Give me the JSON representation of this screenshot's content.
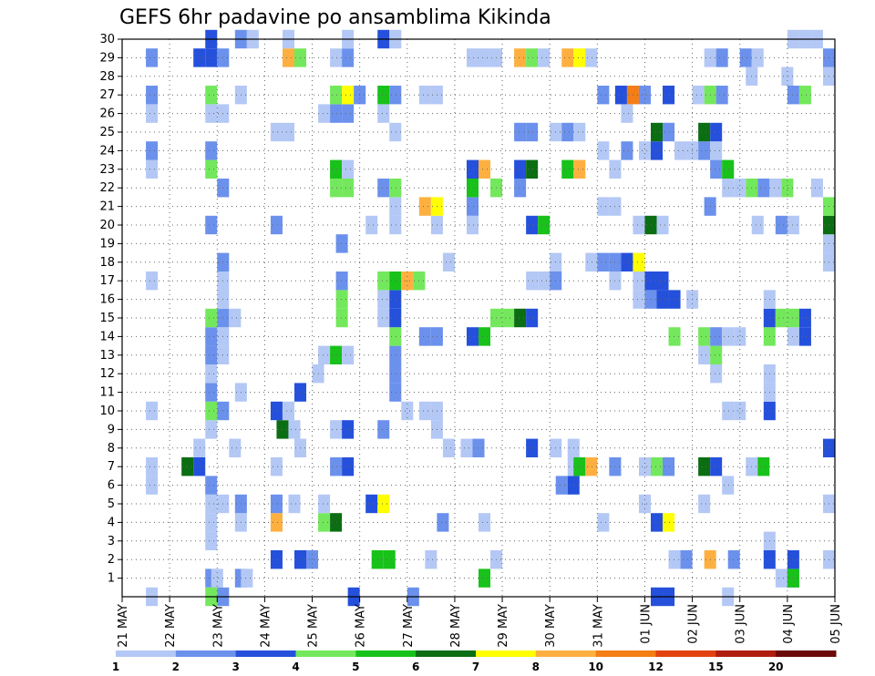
{
  "chart_data": {
    "type": "heatmap",
    "title": "GEFS 6hr padavine po ansamblima Kikinda",
    "x_tick_labels": [
      "21 MAY",
      "22 MAY",
      "23 MAY",
      "24 MAY",
      "25 MAY",
      "26 MAY",
      "27 MAY",
      "28 MAY",
      "29 MAY",
      "30 MAY",
      "31 MAY",
      "01 JUN",
      "02 JUN",
      "03 JUN",
      "04 JUN",
      "05 JUN"
    ],
    "x_range_days": [
      0,
      15
    ],
    "y_tick_labels": [
      "1",
      "2",
      "3",
      "4",
      "5",
      "6",
      "7",
      "8",
      "9",
      "10",
      "11",
      "12",
      "13",
      "14",
      "15",
      "16",
      "17",
      "18",
      "19",
      "20",
      "21",
      "22",
      "23",
      "24",
      "25",
      "26",
      "27",
      "28",
      "29",
      "30"
    ],
    "y_range": [
      0,
      30
    ],
    "grid": true,
    "legend_position": "bottom",
    "colorbar": {
      "labels": [
        "1",
        "2",
        "3",
        "4",
        "5",
        "6",
        "7",
        "8",
        "10",
        "12",
        "15",
        "20"
      ],
      "colors": [
        "#b4c8f5",
        "#6b91ec",
        "#2550db",
        "#74e85c",
        "#18c21a",
        "#0b6e12",
        "#ffff00",
        "#fdb040",
        "#f57d15",
        "#e2420f",
        "#b01e10",
        "#6a0a0a"
      ]
    },
    "cells_note_units": "each cell: [member 1-30, time step in days since 21 MAY 00Z, 6hr precipitation in mm]",
    "cells": [
      [
        1,
        1.875,
        2.5
      ],
      [
        1,
        2.0,
        1.5
      ],
      [
        1,
        2.5,
        2.5
      ],
      [
        1,
        2.625,
        1.5
      ],
      [
        1,
        7.625,
        5.5
      ],
      [
        1,
        13.875,
        1.5
      ],
      [
        1,
        14.125,
        2.5
      ],
      [
        1,
        14.125,
        5.5
      ],
      [
        2,
        3.25,
        3
      ],
      [
        2,
        3.75,
        3
      ],
      [
        2,
        4.0,
        2
      ],
      [
        2,
        5.375,
        5
      ],
      [
        2,
        5.625,
        5.5
      ],
      [
        2,
        6.5,
        1.5
      ],
      [
        2,
        7.875,
        1.5
      ],
      [
        2,
        11.625,
        1.5
      ],
      [
        2,
        11.875,
        2.5
      ],
      [
        2,
        12.375,
        9
      ],
      [
        2,
        12.875,
        2.5
      ],
      [
        2,
        13.625,
        3
      ],
      [
        2,
        14.125,
        3
      ],
      [
        2,
        14.875,
        1.5
      ],
      [
        3,
        1.875,
        1.5
      ],
      [
        3,
        13.625,
        1.5
      ],
      [
        4,
        1.875,
        1.5
      ],
      [
        4,
        2.5,
        1.5
      ],
      [
        4,
        3.25,
        8
      ],
      [
        4,
        4.25,
        4.5
      ],
      [
        4,
        4.5,
        6.5
      ],
      [
        4,
        6.75,
        2.5
      ],
      [
        4,
        7.625,
        1.5
      ],
      [
        4,
        10.125,
        1.5
      ],
      [
        4,
        11.25,
        3
      ],
      [
        4,
        11.5,
        7.5
      ],
      [
        5,
        1.875,
        1.5
      ],
      [
        5,
        2.125,
        1.5
      ],
      [
        5,
        2.5,
        2.5
      ],
      [
        5,
        3.25,
        2.5
      ],
      [
        5,
        3.625,
        1.5
      ],
      [
        5,
        4.25,
        1.5
      ],
      [
        5,
        5.25,
        3
      ],
      [
        5,
        5.5,
        7.5
      ],
      [
        5,
        11.0,
        1.5
      ],
      [
        5,
        12.25,
        1.5
      ],
      [
        5,
        14.875,
        1.5
      ],
      [
        6,
        0.625,
        1.5
      ],
      [
        6,
        1.875,
        2.5
      ],
      [
        6,
        9.25,
        2.5
      ],
      [
        6,
        9.5,
        3
      ],
      [
        6,
        12.75,
        1.5
      ],
      [
        7,
        0.625,
        1.5
      ],
      [
        7,
        1.375,
        6.5
      ],
      [
        7,
        1.625,
        3
      ],
      [
        7,
        3.25,
        1.5
      ],
      [
        7,
        4.5,
        2.5
      ],
      [
        7,
        4.75,
        3
      ],
      [
        7,
        9.5,
        1.5
      ],
      [
        7,
        9.625,
        5.5
      ],
      [
        7,
        9.875,
        9.5
      ],
      [
        7,
        10.375,
        2.5
      ],
      [
        7,
        11.0,
        1.5
      ],
      [
        7,
        11.25,
        4.5
      ],
      [
        7,
        11.5,
        2.5
      ],
      [
        7,
        12.25,
        6.5
      ],
      [
        7,
        12.5,
        3
      ],
      [
        7,
        13.25,
        1.5
      ],
      [
        7,
        13.5,
        5.5
      ],
      [
        8,
        1.625,
        1.5
      ],
      [
        8,
        2.375,
        1.5
      ],
      [
        8,
        3.75,
        1.5
      ],
      [
        8,
        6.875,
        1.5
      ],
      [
        8,
        7.25,
        1.5
      ],
      [
        8,
        7.5,
        2.5
      ],
      [
        8,
        8.625,
        3
      ],
      [
        8,
        9.125,
        1.5
      ],
      [
        8,
        9.5,
        1.5
      ],
      [
        8,
        14.875,
        3
      ],
      [
        9,
        1.875,
        1.5
      ],
      [
        9,
        3.375,
        6.5
      ],
      [
        9,
        3.625,
        1.5
      ],
      [
        9,
        4.5,
        1.5
      ],
      [
        9,
        4.75,
        3
      ],
      [
        9,
        5.5,
        2.5
      ],
      [
        9,
        6.625,
        1.5
      ],
      [
        10,
        0.625,
        1.5
      ],
      [
        10,
        1.875,
        4.5
      ],
      [
        10,
        2.125,
        2.5
      ],
      [
        10,
        3.25,
        3
      ],
      [
        10,
        3.5,
        1.5
      ],
      [
        10,
        6.0,
        1.5
      ],
      [
        10,
        6.375,
        1.5
      ],
      [
        10,
        6.625,
        1.5
      ],
      [
        10,
        12.75,
        1.5
      ],
      [
        10,
        13.0,
        1.5
      ],
      [
        10,
        13.625,
        3
      ],
      [
        11,
        1.875,
        2.5
      ],
      [
        11,
        2.5,
        1.5
      ],
      [
        11,
        3.75,
        3
      ],
      [
        11,
        5.75,
        2.5
      ],
      [
        11,
        13.625,
        1.5
      ],
      [
        12,
        1.875,
        1.5
      ],
      [
        12,
        4.125,
        1.5
      ],
      [
        12,
        5.75,
        2.5
      ],
      [
        12,
        12.5,
        1.5
      ],
      [
        12,
        13.625,
        1.5
      ],
      [
        13,
        1.875,
        2.5
      ],
      [
        13,
        2.125,
        1.5
      ],
      [
        13,
        4.25,
        1.5
      ],
      [
        13,
        4.5,
        5.5
      ],
      [
        13,
        4.75,
        1.5
      ],
      [
        13,
        5.75,
        2.5
      ],
      [
        13,
        12.25,
        1.5
      ],
      [
        13,
        12.5,
        4.5
      ],
      [
        14,
        1.875,
        2.5
      ],
      [
        14,
        2.125,
        1.5
      ],
      [
        14,
        5.75,
        4.5
      ],
      [
        14,
        6.375,
        2.5
      ],
      [
        14,
        6.625,
        2.5
      ],
      [
        14,
        7.375,
        3
      ],
      [
        14,
        7.625,
        5.5
      ],
      [
        14,
        11.625,
        4.5
      ],
      [
        14,
        12.25,
        4.5
      ],
      [
        14,
        12.5,
        2.5
      ],
      [
        14,
        12.75,
        1.5
      ],
      [
        14,
        13.0,
        1.5
      ],
      [
        14,
        13.625,
        4.5
      ],
      [
        14,
        14.125,
        1.5
      ],
      [
        14,
        14.375,
        3
      ],
      [
        15,
        1.875,
        4.5
      ],
      [
        15,
        2.125,
        2.5
      ],
      [
        15,
        2.375,
        1.5
      ],
      [
        15,
        4.625,
        4.5
      ],
      [
        15,
        5.5,
        1.5
      ],
      [
        15,
        5.75,
        3
      ],
      [
        15,
        7.875,
        4.5
      ],
      [
        15,
        8.125,
        4.5
      ],
      [
        15,
        8.375,
        6.5
      ],
      [
        15,
        8.625,
        3
      ],
      [
        15,
        13.625,
        3
      ],
      [
        15,
        13.875,
        4.5
      ],
      [
        15,
        14.125,
        4.5
      ],
      [
        15,
        14.375,
        3
      ],
      [
        16,
        2.125,
        1.5
      ],
      [
        16,
        4.625,
        4.5
      ],
      [
        16,
        5.5,
        1.5
      ],
      [
        16,
        5.75,
        3
      ],
      [
        16,
        10.875,
        1.5
      ],
      [
        16,
        11.125,
        2.5
      ],
      [
        16,
        11.375,
        3
      ],
      [
        16,
        11.625,
        3
      ],
      [
        16,
        12.0,
        1.5
      ],
      [
        16,
        13.625,
        1.5
      ],
      [
        17,
        0.625,
        1.5
      ],
      [
        17,
        2.125,
        1.5
      ],
      [
        17,
        4.625,
        2.5
      ],
      [
        17,
        5.5,
        4.5
      ],
      [
        17,
        5.75,
        5.5
      ],
      [
        17,
        6.0,
        9
      ],
      [
        17,
        6.25,
        4.5
      ],
      [
        17,
        8.625,
        1.5
      ],
      [
        17,
        8.875,
        1.5
      ],
      [
        17,
        9.125,
        2.5
      ],
      [
        17,
        10.375,
        1.5
      ],
      [
        17,
        10.875,
        1.5
      ],
      [
        17,
        11.125,
        3
      ],
      [
        17,
        11.375,
        3
      ],
      [
        18,
        2.125,
        2.5
      ],
      [
        18,
        6.875,
        1.5
      ],
      [
        18,
        9.125,
        1.5
      ],
      [
        18,
        9.875,
        1.5
      ],
      [
        18,
        10.125,
        2.5
      ],
      [
        18,
        10.375,
        2.5
      ],
      [
        18,
        10.625,
        3
      ],
      [
        18,
        10.875,
        7.5
      ],
      [
        18,
        14.875,
        1.5
      ],
      [
        19,
        4.625,
        2.5
      ],
      [
        19,
        14.875,
        1.5
      ],
      [
        20,
        1.875,
        2.5
      ],
      [
        20,
        3.25,
        2.5
      ],
      [
        20,
        5.25,
        1.5
      ],
      [
        20,
        5.75,
        1.5
      ],
      [
        20,
        6.625,
        1.5
      ],
      [
        20,
        7.375,
        1.5
      ],
      [
        20,
        8.625,
        3
      ],
      [
        20,
        8.875,
        5.5
      ],
      [
        20,
        10.875,
        1.5
      ],
      [
        20,
        11.125,
        6.5
      ],
      [
        20,
        11.375,
        1.5
      ],
      [
        20,
        13.375,
        1.5
      ],
      [
        20,
        13.875,
        2.5
      ],
      [
        20,
        14.125,
        1.5
      ],
      [
        20,
        14.875,
        6.5
      ],
      [
        21,
        5.75,
        1.5
      ],
      [
        21,
        6.375,
        9
      ],
      [
        21,
        6.625,
        7.5
      ],
      [
        21,
        7.375,
        2.5
      ],
      [
        21,
        10.125,
        1.5
      ],
      [
        21,
        10.375,
        1.5
      ],
      [
        21,
        12.375,
        2.5
      ],
      [
        21,
        14.875,
        4.5
      ],
      [
        22,
        2.125,
        2.5
      ],
      [
        22,
        4.5,
        4.5
      ],
      [
        22,
        4.75,
        4.5
      ],
      [
        22,
        5.5,
        2.5
      ],
      [
        22,
        5.75,
        4.5
      ],
      [
        22,
        7.375,
        5.5
      ],
      [
        22,
        7.875,
        4.5
      ],
      [
        22,
        8.375,
        2.5
      ],
      [
        22,
        12.75,
        1.5
      ],
      [
        22,
        13.0,
        1.5
      ],
      [
        22,
        13.25,
        4.5
      ],
      [
        22,
        13.5,
        2.5
      ],
      [
        22,
        13.75,
        1.5
      ],
      [
        22,
        14.0,
        4.5
      ],
      [
        22,
        14.625,
        1.5
      ],
      [
        23,
        0.625,
        1.5
      ],
      [
        23,
        1.875,
        4.5
      ],
      [
        23,
        4.5,
        5.5
      ],
      [
        23,
        4.75,
        1.5
      ],
      [
        23,
        7.375,
        3
      ],
      [
        23,
        7.625,
        8.5
      ],
      [
        23,
        8.375,
        3
      ],
      [
        23,
        8.625,
        6.5
      ],
      [
        23,
        9.375,
        5.5
      ],
      [
        23,
        9.625,
        9.5
      ],
      [
        23,
        10.375,
        1.5
      ],
      [
        23,
        12.5,
        2.5
      ],
      [
        23,
        12.75,
        5.5
      ],
      [
        24,
        0.625,
        2.5
      ],
      [
        24,
        1.875,
        2.5
      ],
      [
        24,
        10.125,
        1.5
      ],
      [
        24,
        10.625,
        2.5
      ],
      [
        24,
        11.0,
        1.5
      ],
      [
        24,
        11.25,
        3
      ],
      [
        24,
        11.75,
        1.5
      ],
      [
        24,
        12.0,
        1.5
      ],
      [
        24,
        12.25,
        2.5
      ],
      [
        24,
        12.5,
        1.5
      ],
      [
        25,
        3.25,
        1.5
      ],
      [
        25,
        3.5,
        1.5
      ],
      [
        25,
        5.75,
        1.5
      ],
      [
        25,
        8.375,
        2.5
      ],
      [
        25,
        8.625,
        2.5
      ],
      [
        25,
        9.125,
        1.5
      ],
      [
        25,
        9.375,
        2.5
      ],
      [
        25,
        9.625,
        1.5
      ],
      [
        25,
        11.25,
        6.5
      ],
      [
        25,
        11.5,
        2.5
      ],
      [
        25,
        12.25,
        6.5
      ],
      [
        25,
        12.5,
        3
      ],
      [
        26,
        0.625,
        1.5
      ],
      [
        26,
        1.875,
        1.5
      ],
      [
        26,
        2.125,
        1.5
      ],
      [
        26,
        4.25,
        1.5
      ],
      [
        26,
        4.5,
        2.5
      ],
      [
        26,
        4.75,
        2.5
      ],
      [
        26,
        5.5,
        1.5
      ],
      [
        26,
        10.625,
        1.5
      ],
      [
        27,
        0.625,
        2.5
      ],
      [
        27,
        1.875,
        4.5
      ],
      [
        27,
        2.5,
        1.5
      ],
      [
        27,
        4.5,
        4.5
      ],
      [
        27,
        4.75,
        7.5
      ],
      [
        27,
        5.0,
        2.5
      ],
      [
        27,
        5.5,
        5.5
      ],
      [
        27,
        5.75,
        2.5
      ],
      [
        27,
        6.375,
        1.5
      ],
      [
        27,
        6.625,
        1.5
      ],
      [
        27,
        10.125,
        2.5
      ],
      [
        27,
        10.5,
        3
      ],
      [
        27,
        10.75,
        11
      ],
      [
        27,
        11.0,
        2.5
      ],
      [
        27,
        11.5,
        3
      ],
      [
        27,
        12.125,
        1.5
      ],
      [
        27,
        12.375,
        4.5
      ],
      [
        27,
        12.625,
        2.5
      ],
      [
        27,
        14.125,
        2.5
      ],
      [
        27,
        14.375,
        4.5
      ],
      [
        28,
        13.25,
        1.5
      ],
      [
        28,
        14.0,
        1.5
      ],
      [
        28,
        14.875,
        1.5
      ],
      [
        29,
        0.625,
        2.5
      ],
      [
        29,
        1.625,
        3
      ],
      [
        29,
        1.875,
        3
      ],
      [
        29,
        2.125,
        2.5
      ],
      [
        29,
        3.5,
        9
      ],
      [
        29,
        3.75,
        4.5
      ],
      [
        29,
        4.5,
        1.5
      ],
      [
        29,
        4.75,
        2.5
      ],
      [
        29,
        7.375,
        1.5
      ],
      [
        29,
        7.625,
        1.5
      ],
      [
        29,
        7.875,
        1.5
      ],
      [
        29,
        8.375,
        9
      ],
      [
        29,
        8.625,
        4.5
      ],
      [
        29,
        8.875,
        1.5
      ],
      [
        29,
        9.375,
        9
      ],
      [
        29,
        9.625,
        7.5
      ],
      [
        29,
        9.875,
        1.5
      ],
      [
        29,
        12.375,
        1.5
      ],
      [
        29,
        12.625,
        2.5
      ],
      [
        29,
        13.125,
        2.5
      ],
      [
        29,
        13.375,
        1.5
      ],
      [
        29,
        14.875,
        2.5
      ],
      [
        30,
        1.875,
        3
      ],
      [
        30,
        2.5,
        2.5
      ],
      [
        30,
        2.75,
        1.5
      ],
      [
        30,
        3.5,
        1.5
      ],
      [
        30,
        4.75,
        1.5
      ],
      [
        30,
        5.5,
        3
      ],
      [
        30,
        5.75,
        1.5
      ],
      [
        30,
        14.125,
        1.5
      ],
      [
        30,
        14.375,
        1.5
      ],
      [
        30,
        14.625,
        1.5
      ],
      [
        0,
        0.625,
        1.5
      ],
      [
        0,
        1.875,
        4.5
      ],
      [
        0,
        2.125,
        2.5
      ],
      [
        0,
        4.875,
        3
      ],
      [
        0,
        6.125,
        2.5
      ],
      [
        0,
        11.25,
        3
      ],
      [
        0,
        11.5,
        3
      ],
      [
        0,
        12.75,
        1.5
      ]
    ]
  }
}
